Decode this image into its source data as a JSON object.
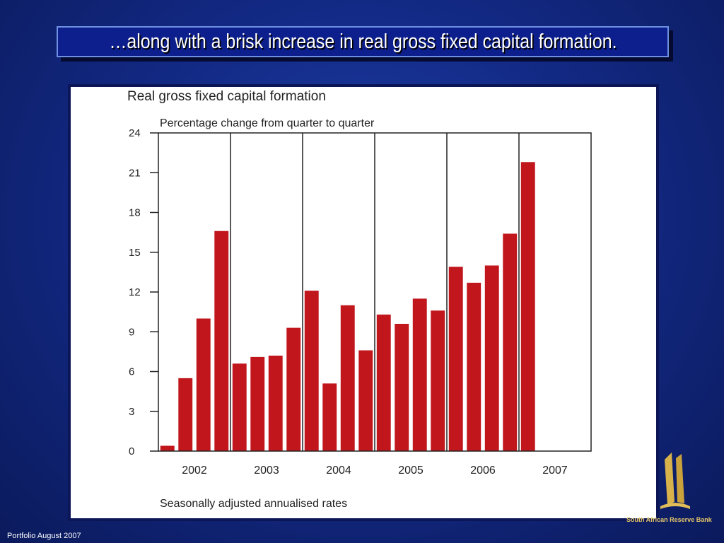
{
  "slide": {
    "title": "…along with a brisk increase in real gross fixed capital formation.",
    "footer": "Portfolio August 2007",
    "bank_name": "South African Reserve Bank"
  },
  "chart_data": {
    "type": "bar",
    "title": "Real  gross fixed capital formation",
    "subtitle": "Percentage change from quarter to quarter",
    "note": "Seasonally adjusted annualised rates",
    "bar_color": "#c0161c",
    "ylim": [
      0,
      24
    ],
    "yticks": [
      "0",
      "3",
      "6",
      "9",
      "12",
      "15",
      "18",
      "21",
      "24"
    ],
    "years": [
      "2002",
      "2003",
      "2004",
      "2005",
      "2006",
      "2007"
    ],
    "categories": [
      "2002Q1",
      "2002Q2",
      "2002Q3",
      "2002Q4",
      "2003Q1",
      "2003Q2",
      "2003Q3",
      "2003Q4",
      "2004Q1",
      "2004Q2",
      "2004Q3",
      "2004Q4",
      "2005Q1",
      "2005Q2",
      "2005Q3",
      "2005Q4",
      "2006Q1",
      "2006Q2",
      "2006Q3",
      "2006Q4",
      "2007Q1"
    ],
    "values": [
      0.4,
      5.5,
      10.0,
      16.6,
      6.6,
      7.1,
      7.2,
      9.3,
      12.1,
      5.1,
      11.0,
      7.6,
      10.3,
      9.6,
      11.5,
      10.6,
      13.9,
      12.7,
      14.0,
      16.4,
      21.8
    ]
  }
}
